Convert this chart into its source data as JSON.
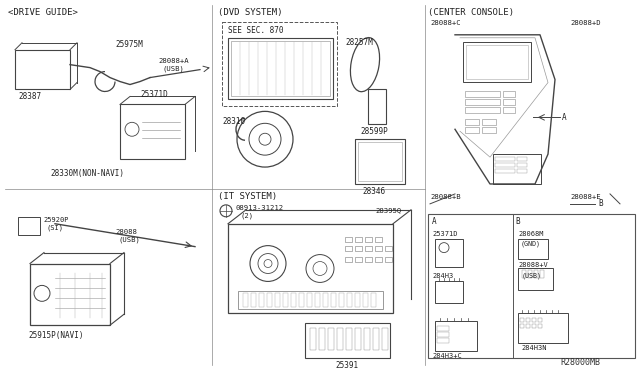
{
  "bg_color": "#ffffff",
  "lc": "#444444",
  "figsize": [
    6.4,
    3.72
  ],
  "dpi": 100,
  "labels": {
    "drive_guide": "<DRIVE GUIDE>",
    "dvd_system": "(DVD SYSTEM)",
    "center_console": "(CENTER CONSOLE)",
    "it_system": "(IT SYSTEM)",
    "r28000mb": "R28000MB",
    "see_sec": "SEE SEC. 870"
  }
}
